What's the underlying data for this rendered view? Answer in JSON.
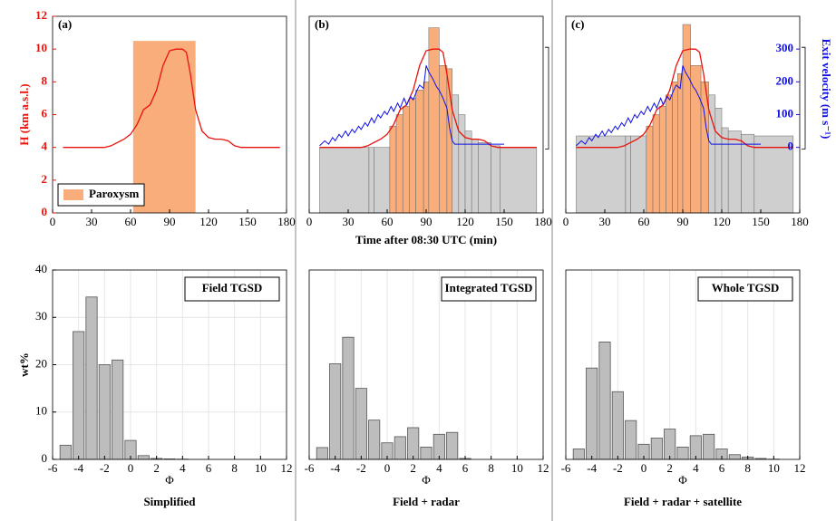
{
  "chart_data": [
    {
      "type": "line",
      "panel": "(a)",
      "xlim": [
        0,
        180
      ],
      "xticks": [
        0,
        30,
        60,
        90,
        120,
        150,
        180
      ],
      "ylim": [
        0,
        12
      ],
      "yticks": [
        0,
        2,
        4,
        6,
        8,
        10,
        12
      ],
      "ylabel": "H (km a.s.l.)",
      "span": {
        "name": "Paroxysm",
        "color": "#f9ad7a",
        "x": [
          62,
          110
        ],
        "value": 10.5
      },
      "series": [
        {
          "color": "#e8120c",
          "x": [
            8,
            40,
            45,
            50,
            55,
            60,
            65,
            70,
            75,
            80,
            85,
            90,
            95,
            100,
            103,
            106,
            110,
            115,
            120,
            125,
            130,
            135,
            140,
            145,
            150,
            175
          ],
          "values": [
            4,
            4,
            4.1,
            4.3,
            4.5,
            4.8,
            5.4,
            6.3,
            6.6,
            7.5,
            9,
            9.9,
            10,
            10,
            9.8,
            8.5,
            6.3,
            5,
            4.6,
            4.5,
            4.5,
            4.4,
            4.1,
            4,
            4,
            4
          ]
        }
      ]
    },
    {
      "type": "line",
      "panel": "(b)",
      "xlim": [
        0,
        180
      ],
      "xticks": [
        0,
        30,
        60,
        90,
        120,
        150,
        180
      ],
      "ylim": [
        0,
        12
      ],
      "y2lim": [
        -200,
        400
      ],
      "xlabel": "Time after 08:30 UTC (min)",
      "bars": [
        {
          "color": "#cfcfcf",
          "bins": [
            8,
            46,
            50,
            62
          ],
          "values": [
            4,
            4,
            4
          ]
        },
        {
          "color": "#cfcfcf",
          "bins": [
            110,
            115,
            120,
            125,
            130,
            140,
            147,
            175
          ],
          "values": [
            7.2,
            6,
            5,
            4.5,
            4.3,
            4.1,
            4
          ]
        },
        {
          "color": "#f9ad7a",
          "bins": [
            62,
            67,
            72,
            77,
            82,
            88,
            92,
            100,
            106,
            110
          ],
          "values": [
            5.3,
            6,
            6.5,
            7,
            7.5,
            8,
            11.3,
            9,
            8.8
          ]
        }
      ],
      "series": [
        {
          "color": "#e8120c",
          "x": [
            8,
            40,
            45,
            50,
            55,
            60,
            65,
            70,
            75,
            80,
            85,
            90,
            95,
            100,
            103,
            106,
            110,
            115,
            120,
            125,
            130,
            135,
            140,
            145,
            150,
            175
          ],
          "values": [
            4,
            4,
            4.1,
            4.3,
            4.5,
            4.8,
            5.4,
            6.3,
            6.6,
            7.5,
            9,
            9.9,
            10,
            10,
            9.8,
            8.5,
            6.3,
            5,
            4.6,
            4.5,
            4.5,
            4.4,
            4.1,
            4,
            4,
            4
          ]
        },
        {
          "color": "#1010e8",
          "axis": "y2",
          "x": [
            8,
            12,
            15,
            18,
            20,
            23,
            25,
            28,
            30,
            33,
            35,
            38,
            40,
            43,
            45,
            48,
            50,
            53,
            55,
            58,
            60,
            63,
            65,
            68,
            70,
            73,
            75,
            78,
            80,
            83,
            85,
            88,
            90,
            92,
            95,
            98,
            100,
            103,
            106,
            108,
            110,
            112,
            120,
            140,
            150
          ],
          "values": [
            5,
            20,
            10,
            30,
            20,
            40,
            30,
            50,
            35,
            55,
            45,
            65,
            55,
            75,
            65,
            90,
            75,
            100,
            90,
            110,
            100,
            125,
            110,
            135,
            120,
            150,
            130,
            155,
            145,
            175,
            190,
            180,
            250,
            230,
            210,
            185,
            175,
            150,
            120,
            60,
            20,
            10,
            10,
            10,
            10
          ]
        }
      ]
    },
    {
      "type": "line",
      "panel": "(c)",
      "xlim": [
        0,
        180
      ],
      "xticks": [
        0,
        30,
        60,
        90,
        120,
        150,
        180
      ],
      "ylim": [
        0,
        12
      ],
      "y2lim": [
        -200,
        400
      ],
      "y2ticks": [
        0,
        100,
        200,
        300
      ],
      "y2label": "Exit velocity (m s⁻¹)",
      "bars": [
        {
          "color": "#cfcfcf",
          "bins": [
            8,
            46,
            50,
            62
          ],
          "values": [
            4.7,
            4.7,
            4.7
          ]
        },
        {
          "color": "#cfcfcf",
          "bins": [
            110,
            115,
            120,
            125,
            135,
            145,
            175
          ],
          "values": [
            7.2,
            6.4,
            5.2,
            5,
            4.8,
            4.7
          ]
        },
        {
          "color": "#f9ad7a",
          "bins": [
            62,
            67,
            72,
            77,
            82,
            86,
            90,
            96,
            104,
            110
          ],
          "values": [
            5.3,
            6,
            6.5,
            7.2,
            8,
            8.5,
            11.5,
            9,
            8
          ]
        }
      ],
      "series": [
        {
          "color": "#e8120c",
          "x": [
            8,
            40,
            45,
            50,
            55,
            60,
            65,
            70,
            75,
            80,
            85,
            90,
            95,
            100,
            103,
            106,
            110,
            115,
            120,
            125,
            130,
            135,
            140,
            145,
            150,
            175
          ],
          "values": [
            4,
            4,
            4.1,
            4.3,
            4.5,
            4.8,
            5.4,
            6.3,
            6.6,
            7.5,
            9,
            9.9,
            10,
            10,
            9.8,
            8.5,
            6.3,
            5,
            4.6,
            4.5,
            4.5,
            4.4,
            4.1,
            4,
            4,
            4
          ]
        },
        {
          "color": "#1010e8",
          "axis": "y2",
          "x": [
            8,
            12,
            15,
            18,
            20,
            23,
            25,
            28,
            30,
            33,
            35,
            38,
            40,
            43,
            45,
            48,
            50,
            53,
            55,
            58,
            60,
            63,
            65,
            68,
            70,
            73,
            75,
            78,
            80,
            83,
            85,
            88,
            90,
            92,
            95,
            98,
            100,
            103,
            106,
            108,
            110,
            112,
            120,
            140,
            150
          ],
          "values": [
            5,
            20,
            10,
            30,
            20,
            40,
            30,
            50,
            35,
            55,
            45,
            65,
            55,
            75,
            65,
            90,
            75,
            100,
            90,
            110,
            100,
            125,
            110,
            135,
            120,
            150,
            130,
            155,
            145,
            175,
            190,
            180,
            250,
            230,
            210,
            185,
            175,
            150,
            120,
            60,
            20,
            10,
            10,
            10,
            10
          ]
        }
      ]
    },
    {
      "type": "histogram",
      "label": "Field TGSD",
      "caption": "Simplified",
      "xlabel": "Φ",
      "ylabel": "wt%",
      "color": "#bdbdbd",
      "grid": true,
      "xlim": [
        -6,
        12
      ],
      "xticks": [
        -6,
        -4,
        -2,
        0,
        2,
        4,
        6,
        8,
        10,
        12
      ],
      "ylim": [
        0,
        40
      ],
      "yticks": [
        0,
        10,
        20,
        30,
        40
      ],
      "bins": [
        -5.5,
        -4.5,
        -3.5,
        -2.5,
        -1.5,
        -0.5,
        0.5,
        1.5,
        2.5,
        3.5,
        4.5,
        5.5,
        6.5,
        7.5,
        8.5,
        9.5,
        10.5
      ],
      "values": [
        3,
        27,
        34.3,
        20,
        21,
        4,
        0.8,
        0.2,
        0.1,
        0.05,
        0,
        0,
        0,
        0,
        0,
        0
      ]
    },
    {
      "type": "histogram",
      "label": "Integrated TGSD",
      "caption": "Field + radar",
      "xlabel": "Φ",
      "color": "#bdbdbd",
      "grid": true,
      "xlim": [
        -6,
        12
      ],
      "xticks": [
        -6,
        -4,
        -2,
        0,
        2,
        4,
        6,
        8,
        10,
        12
      ],
      "ylim": [
        0,
        40
      ],
      "bins": [
        -5.5,
        -4.5,
        -3.5,
        -2.5,
        -1.5,
        -0.5,
        0.5,
        1.5,
        2.5,
        3.5,
        4.5,
        5.5,
        6.5,
        7.5,
        8.5,
        9.5,
        10.5
      ],
      "values": [
        2.5,
        20.2,
        25.8,
        15,
        8.3,
        3.5,
        4.8,
        6.7,
        2.6,
        5.3,
        5.7,
        0.2,
        0,
        0,
        0,
        0
      ]
    },
    {
      "type": "histogram",
      "label": "Whole TGSD",
      "caption": "Field + radar + satellite",
      "xlabel": "Φ",
      "color": "#bdbdbd",
      "grid": true,
      "xlim": [
        -6,
        12
      ],
      "xticks": [
        -6,
        -4,
        -2,
        0,
        2,
        4,
        6,
        8,
        10,
        12
      ],
      "ylim": [
        0,
        40
      ],
      "bins": [
        -5.5,
        -4.5,
        -3.5,
        -2.5,
        -1.5,
        -0.5,
        0.5,
        1.5,
        2.5,
        3.5,
        4.5,
        5.5,
        6.5,
        7.5,
        8.5,
        9.5,
        10.5
      ],
      "values": [
        2.2,
        19.3,
        24.8,
        14.3,
        8.2,
        3.2,
        4.5,
        6.4,
        2.6,
        5,
        5.3,
        2.2,
        1,
        0.5,
        0.2,
        0.05
      ]
    }
  ]
}
